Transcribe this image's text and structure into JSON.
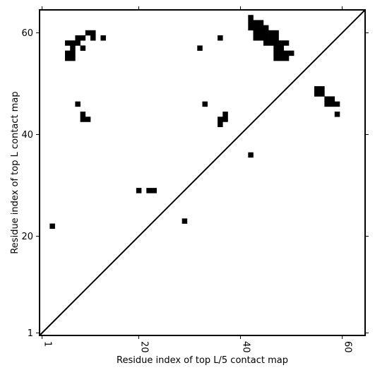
{
  "chart_data": {
    "type": "heatmap",
    "title": "",
    "xlabel": "Residue index of top L/5 contact map",
    "ylabel": "Residue index of top L contact map",
    "xlim": [
      0.5,
      64.5
    ],
    "ylim": [
      0.5,
      64.5
    ],
    "xticks": [
      1,
      20,
      40,
      60
    ],
    "yticks": [
      1,
      20,
      40,
      60
    ],
    "grid": false,
    "legend": "none",
    "diagonal": true,
    "cell_color": "#000000",
    "background": "#ffffff",
    "upper_contacts": [
      [
        6,
        55
      ],
      [
        6,
        56
      ],
      [
        7,
        55
      ],
      [
        7,
        56
      ],
      [
        7,
        57
      ],
      [
        6,
        58
      ],
      [
        7,
        58
      ],
      [
        8,
        58
      ],
      [
        8,
        59
      ],
      [
        9,
        59
      ],
      [
        9,
        57
      ],
      [
        10,
        60
      ],
      [
        11,
        60
      ],
      [
        11,
        59
      ],
      [
        13,
        59
      ],
      [
        32,
        57
      ],
      [
        36,
        59
      ],
      [
        42,
        61
      ],
      [
        42,
        62
      ],
      [
        42,
        63
      ],
      [
        43,
        59
      ],
      [
        43,
        60
      ],
      [
        43,
        61
      ],
      [
        43,
        62
      ],
      [
        44,
        59
      ],
      [
        44,
        60
      ],
      [
        44,
        61
      ],
      [
        44,
        62
      ],
      [
        45,
        58
      ],
      [
        45,
        59
      ],
      [
        45,
        60
      ],
      [
        45,
        61
      ],
      [
        46,
        58
      ],
      [
        46,
        59
      ],
      [
        46,
        60
      ],
      [
        47,
        55
      ],
      [
        47,
        56
      ],
      [
        47,
        57
      ],
      [
        47,
        58
      ],
      [
        47,
        59
      ],
      [
        47,
        60
      ],
      [
        48,
        55
      ],
      [
        48,
        56
      ],
      [
        48,
        57
      ],
      [
        48,
        58
      ],
      [
        49,
        55
      ],
      [
        49,
        56
      ],
      [
        49,
        58
      ],
      [
        50,
        56
      ],
      [
        8,
        46
      ],
      [
        9,
        43
      ],
      [
        9,
        44
      ],
      [
        10,
        43
      ],
      [
        33,
        46
      ],
      [
        36,
        42
      ],
      [
        36,
        43
      ],
      [
        37,
        43
      ],
      [
        37,
        44
      ],
      [
        55,
        48
      ],
      [
        55,
        49
      ],
      [
        56,
        48
      ],
      [
        56,
        49
      ],
      [
        57,
        46
      ],
      [
        57,
        47
      ],
      [
        58,
        46
      ],
      [
        58,
        47
      ],
      [
        59,
        46
      ],
      [
        59,
        44
      ],
      [
        42,
        36
      ]
    ],
    "lower_contacts": [
      [
        3,
        22
      ],
      [
        20,
        29
      ],
      [
        22,
        29
      ],
      [
        23,
        29
      ],
      [
        29,
        23
      ]
    ]
  }
}
